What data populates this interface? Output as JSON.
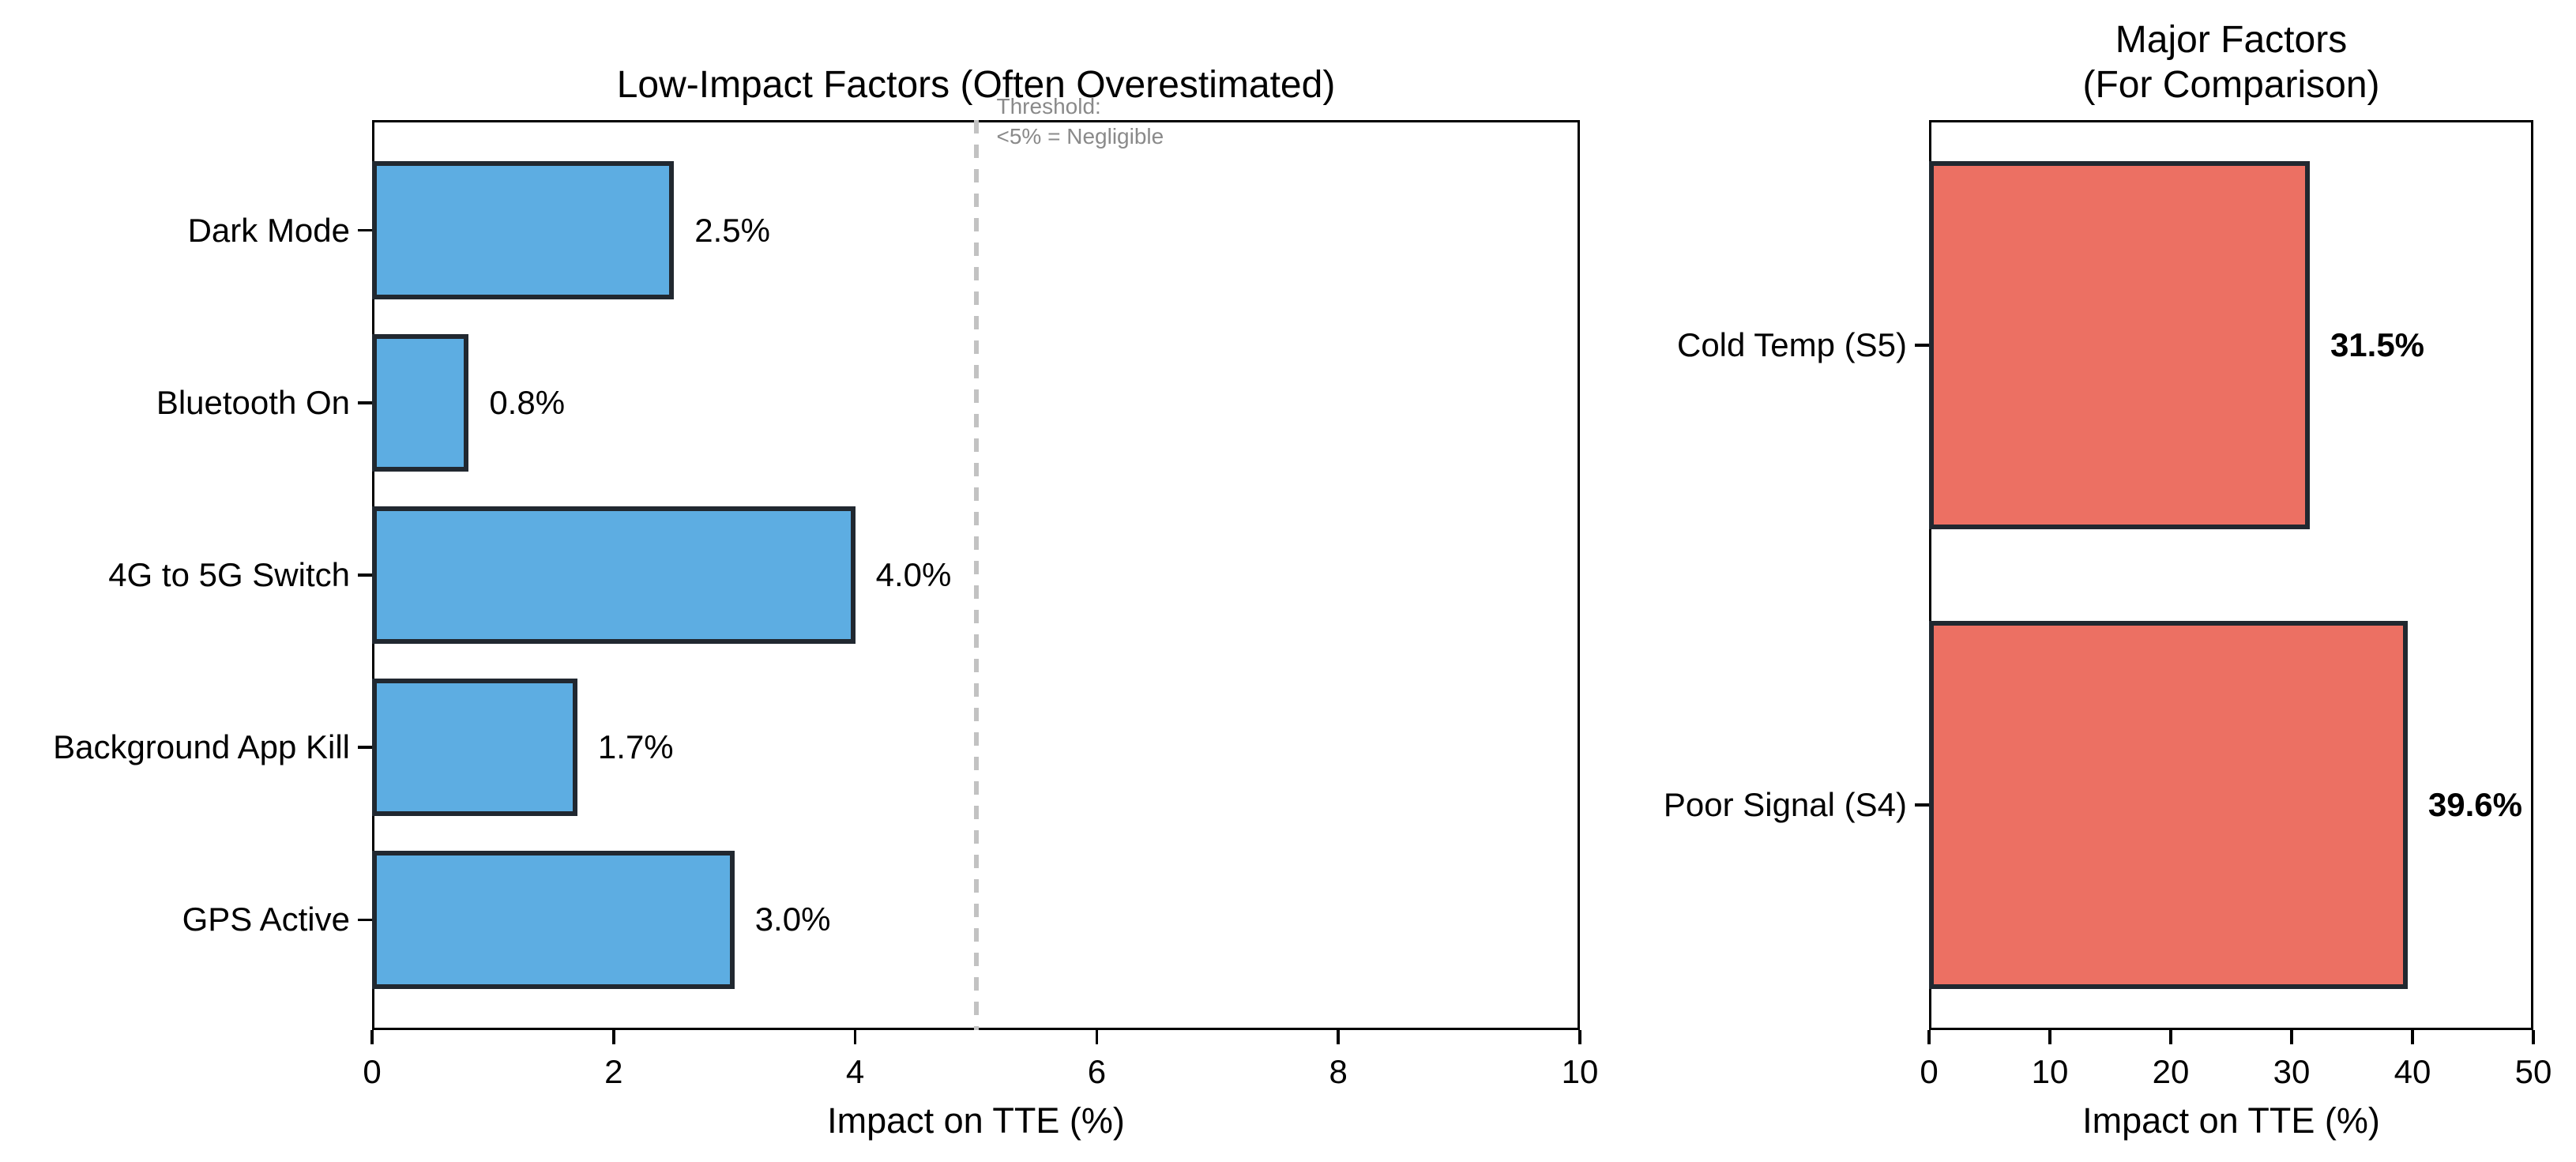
{
  "figure": {
    "background": "#ffffff",
    "accent_blue": "#5DADE2",
    "accent_red": "#EC7063",
    "bar_edge_color": "#212830",
    "axis_color": "#000000"
  },
  "chart_data": [
    {
      "id": "low-impact",
      "type": "bar",
      "orientation": "horizontal",
      "title": "Low-Impact Factors (Often Overestimated)",
      "title_lines": [
        "Low-Impact Factors (Often Overestimated)"
      ],
      "xlabel": "Impact on TTE (%)",
      "xlim": [
        0,
        10
      ],
      "xticks": [
        0,
        2,
        4,
        6,
        8,
        10
      ],
      "categories": [
        "Dark Mode",
        "Bluetooth On",
        "4G to 5G Switch",
        "Background App Kill",
        "GPS Active"
      ],
      "values": [
        2.5,
        0.8,
        4.0,
        1.7,
        3.0
      ],
      "value_labels": [
        "2.5%",
        "0.8%",
        "4.0%",
        "1.7%",
        "3.0%"
      ],
      "value_labels_bold": false,
      "bar_color": "#5DADE2",
      "bar_edge_color": "#212830",
      "grid": false,
      "legend": null,
      "threshold_line": {
        "x": 5,
        "style": "dashed",
        "color": "#c2c2c2",
        "annotation_lines": [
          "Threshold:",
          "<5% = Negligible"
        ],
        "annotation_color": "#8a8a8a"
      }
    },
    {
      "id": "major",
      "type": "bar",
      "orientation": "horizontal",
      "title": "Major Factors (For Comparison)",
      "title_lines": [
        "Major Factors",
        "(For Comparison)"
      ],
      "xlabel": "Impact on TTE (%)",
      "xlim": [
        0,
        50
      ],
      "xticks": [
        0,
        10,
        20,
        30,
        40,
        50
      ],
      "categories": [
        "Cold Temp (S5)",
        "Poor Signal (S4)"
      ],
      "values": [
        31.5,
        39.6
      ],
      "value_labels": [
        "31.5%",
        "39.6%"
      ],
      "value_labels_bold": true,
      "bar_color": "#EC7063",
      "bar_edge_color": "#212830",
      "grid": false,
      "legend": null,
      "threshold_line": null
    }
  ]
}
